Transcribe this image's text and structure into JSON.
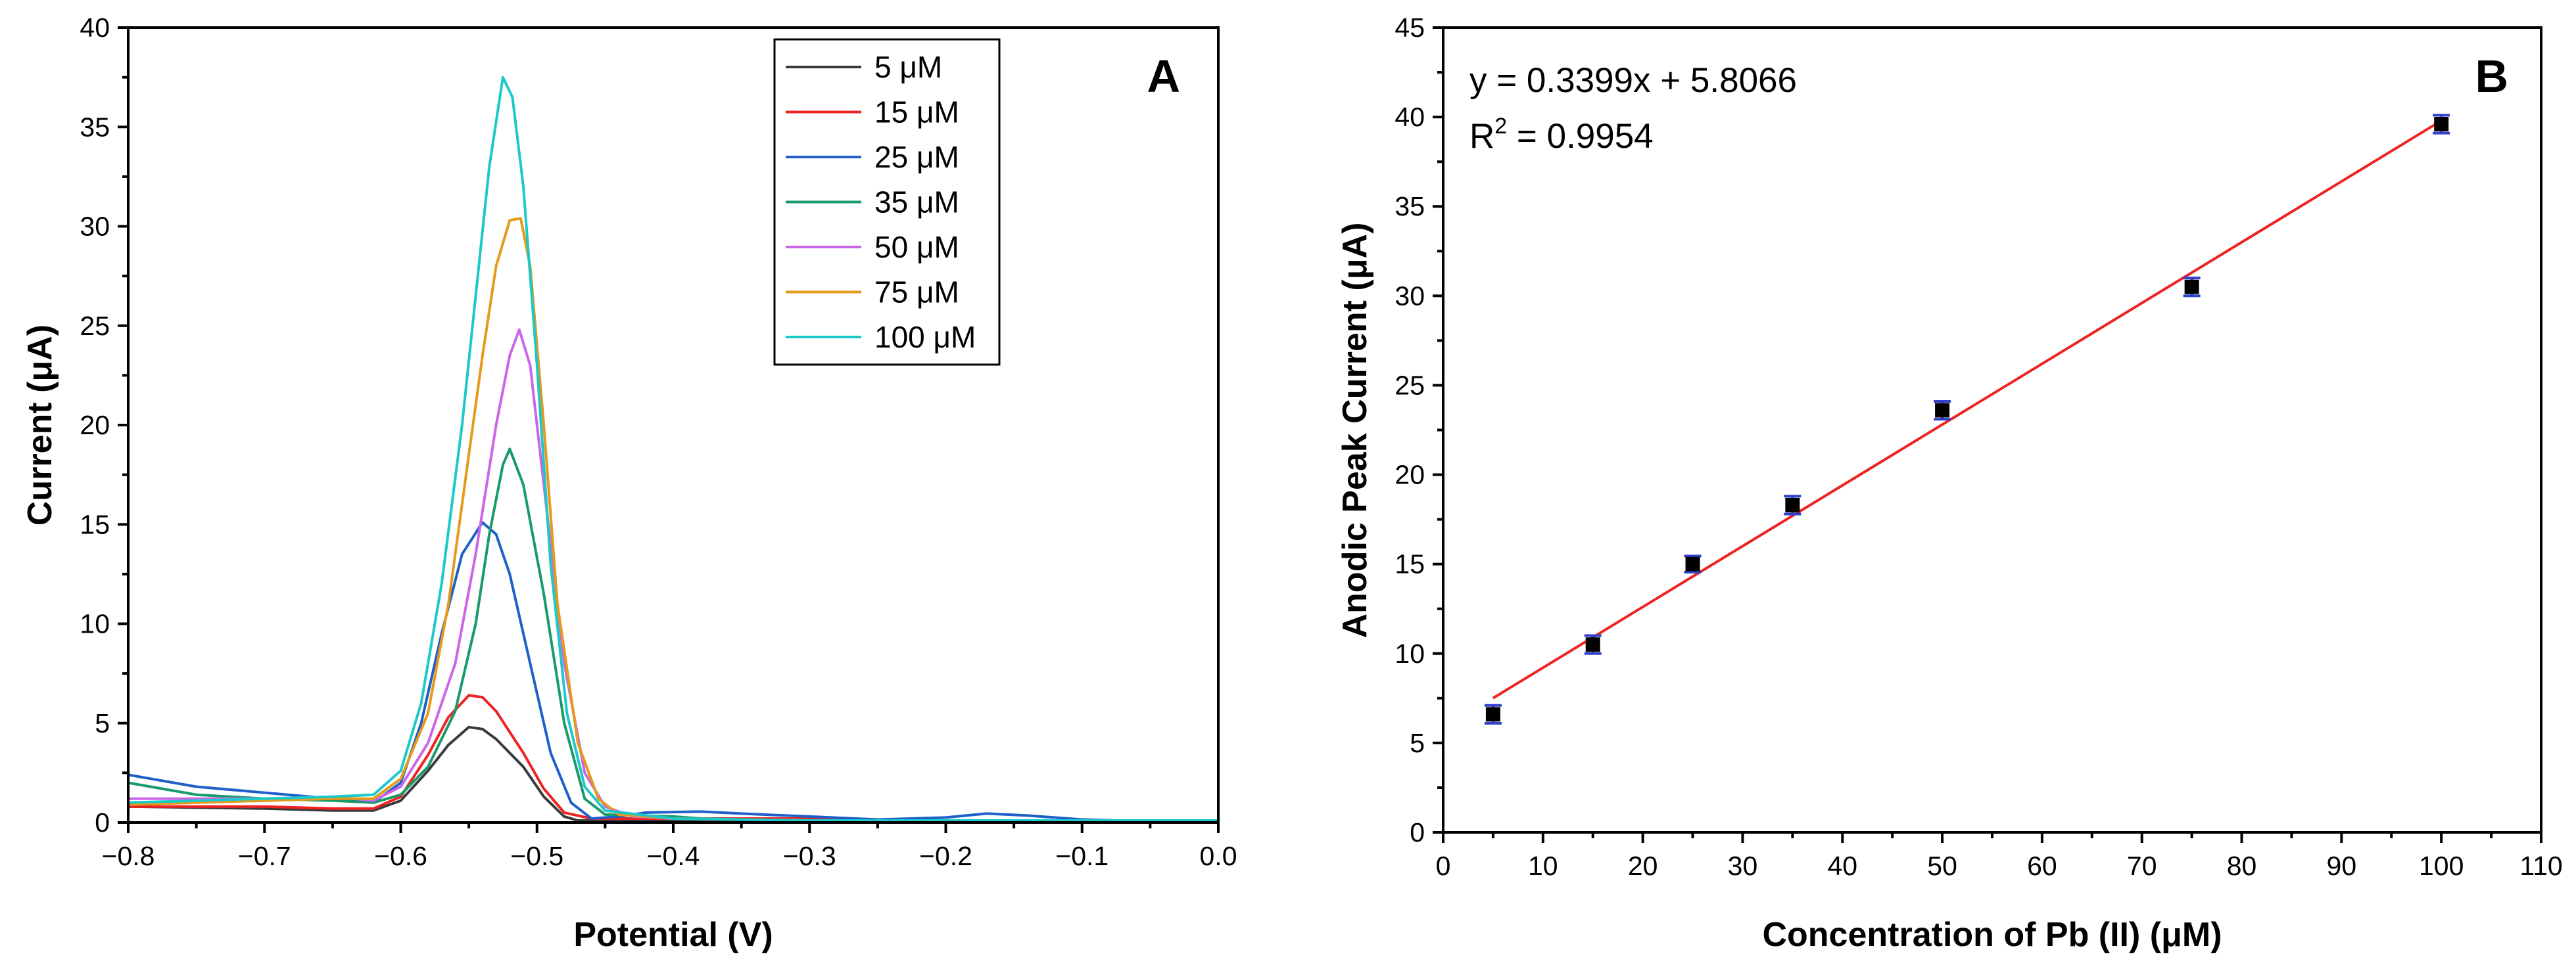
{
  "chart_data": [
    {
      "panel": "A",
      "type": "line",
      "xlabel": "Potential (V)",
      "ylabel": "Current (μA)",
      "xlim": [
        -0.8,
        0.0
      ],
      "ylim": [
        0,
        40
      ],
      "xticks": [
        -0.8,
        -0.7,
        -0.6,
        -0.5,
        -0.4,
        -0.3,
        -0.2,
        -0.1,
        0.0
      ],
      "xtick_labels": [
        "−0.8",
        "−0.7",
        "−0.6",
        "−0.5",
        "−0.4",
        "−0.3",
        "−0.2",
        "−0.1",
        "0.0"
      ],
      "yticks": [
        0,
        5,
        10,
        15,
        20,
        25,
        30,
        35,
        40
      ],
      "ytick_labels": [
        "0",
        "5",
        "10",
        "15",
        "20",
        "25",
        "30",
        "35",
        "40"
      ],
      "legend_position": "top-right",
      "series": [
        {
          "name": "5 μM",
          "color": "#3a3a3a",
          "points": [
            [
              -0.8,
              0.8
            ],
            [
              -0.7,
              0.7
            ],
            [
              -0.65,
              0.6
            ],
            [
              -0.62,
              0.6
            ],
            [
              -0.6,
              1.1
            ],
            [
              -0.58,
              2.6
            ],
            [
              -0.565,
              3.9
            ],
            [
              -0.55,
              4.8
            ],
            [
              -0.54,
              4.7
            ],
            [
              -0.53,
              4.2
            ],
            [
              -0.51,
              2.8
            ],
            [
              -0.495,
              1.3
            ],
            [
              -0.48,
              0.3
            ],
            [
              -0.47,
              0.1
            ],
            [
              -0.45,
              0.1
            ],
            [
              -0.4,
              0.1
            ],
            [
              -0.3,
              0.1
            ],
            [
              -0.2,
              0.1
            ],
            [
              -0.1,
              0.1
            ],
            [
              0.0,
              0.1
            ]
          ]
        },
        {
          "name": "15 μM",
          "color": "#ee2222",
          "points": [
            [
              -0.8,
              0.8
            ],
            [
              -0.7,
              0.8
            ],
            [
              -0.65,
              0.7
            ],
            [
              -0.62,
              0.7
            ],
            [
              -0.6,
              1.3
            ],
            [
              -0.58,
              3.4
            ],
            [
              -0.565,
              5.3
            ],
            [
              -0.55,
              6.4
            ],
            [
              -0.54,
              6.3
            ],
            [
              -0.53,
              5.6
            ],
            [
              -0.51,
              3.5
            ],
            [
              -0.495,
              1.7
            ],
            [
              -0.48,
              0.5
            ],
            [
              -0.46,
              0.2
            ],
            [
              -0.4,
              0.2
            ],
            [
              -0.3,
              0.2
            ],
            [
              -0.2,
              0.1
            ],
            [
              -0.1,
              0.1
            ],
            [
              0.0,
              0.1
            ]
          ]
        },
        {
          "name": "25 μM",
          "color": "#1f5fc9",
          "points": [
            [
              -0.8,
              2.4
            ],
            [
              -0.75,
              1.8
            ],
            [
              -0.7,
              1.5
            ],
            [
              -0.65,
              1.2
            ],
            [
              -0.62,
              1.0
            ],
            [
              -0.6,
              2.0
            ],
            [
              -0.585,
              5.0
            ],
            [
              -0.57,
              9.5
            ],
            [
              -0.555,
              13.5
            ],
            [
              -0.54,
              15.1
            ],
            [
              -0.53,
              14.5
            ],
            [
              -0.52,
              12.5
            ],
            [
              -0.505,
              8.0
            ],
            [
              -0.49,
              3.5
            ],
            [
              -0.475,
              1.0
            ],
            [
              -0.46,
              0.2
            ],
            [
              -0.44,
              0.3
            ],
            [
              -0.42,
              0.5
            ],
            [
              -0.38,
              0.55
            ],
            [
              -0.35,
              0.45
            ],
            [
              -0.3,
              0.3
            ],
            [
              -0.25,
              0.15
            ],
            [
              -0.2,
              0.25
            ],
            [
              -0.17,
              0.45
            ],
            [
              -0.14,
              0.35
            ],
            [
              -0.1,
              0.15
            ],
            [
              -0.05,
              0.05
            ],
            [
              0.0,
              0.1
            ]
          ]
        },
        {
          "name": "35 μM",
          "color": "#189a6a",
          "points": [
            [
              -0.8,
              2.0
            ],
            [
              -0.75,
              1.4
            ],
            [
              -0.7,
              1.2
            ],
            [
              -0.65,
              1.1
            ],
            [
              -0.62,
              1.0
            ],
            [
              -0.6,
              1.4
            ],
            [
              -0.58,
              2.8
            ],
            [
              -0.56,
              5.6
            ],
            [
              -0.545,
              10.0
            ],
            [
              -0.535,
              14.5
            ],
            [
              -0.525,
              18.0
            ],
            [
              -0.52,
              18.8
            ],
            [
              -0.51,
              17.0
            ],
            [
              -0.495,
              11.5
            ],
            [
              -0.48,
              5.0
            ],
            [
              -0.465,
              1.2
            ],
            [
              -0.45,
              0.4
            ],
            [
              -0.4,
              0.3
            ],
            [
              -0.38,
              0.2
            ],
            [
              -0.3,
              0.1
            ],
            [
              -0.2,
              0.1
            ],
            [
              -0.1,
              0.1
            ],
            [
              0.0,
              0.1
            ]
          ]
        },
        {
          "name": "50 μM",
          "color": "#cc66e8",
          "points": [
            [
              -0.8,
              1.2
            ],
            [
              -0.7,
              1.2
            ],
            [
              -0.65,
              1.3
            ],
            [
              -0.62,
              1.1
            ],
            [
              -0.6,
              1.8
            ],
            [
              -0.58,
              4.0
            ],
            [
              -0.56,
              8.0
            ],
            [
              -0.545,
              13.5
            ],
            [
              -0.53,
              20.0
            ],
            [
              -0.52,
              23.5
            ],
            [
              -0.513,
              24.8
            ],
            [
              -0.505,
              23.0
            ],
            [
              -0.495,
              17.0
            ],
            [
              -0.48,
              8.0
            ],
            [
              -0.465,
              2.5
            ],
            [
              -0.45,
              0.8
            ],
            [
              -0.43,
              0.3
            ],
            [
              -0.4,
              0.2
            ],
            [
              -0.3,
              0.1
            ],
            [
              -0.2,
              0.1
            ],
            [
              -0.1,
              0.1
            ],
            [
              0.0,
              0.1
            ]
          ]
        },
        {
          "name": "75 μM",
          "color": "#e49a1c",
          "points": [
            [
              -0.8,
              0.9
            ],
            [
              -0.7,
              1.1
            ],
            [
              -0.65,
              1.2
            ],
            [
              -0.62,
              1.2
            ],
            [
              -0.6,
              2.2
            ],
            [
              -0.58,
              5.5
            ],
            [
              -0.565,
              11.0
            ],
            [
              -0.55,
              18.5
            ],
            [
              -0.54,
              23.5
            ],
            [
              -0.53,
              28.0
            ],
            [
              -0.52,
              30.3
            ],
            [
              -0.512,
              30.4
            ],
            [
              -0.505,
              28.0
            ],
            [
              -0.495,
              20.0
            ],
            [
              -0.485,
              11.0
            ],
            [
              -0.47,
              4.0
            ],
            [
              -0.455,
              1.2
            ],
            [
              -0.44,
              0.4
            ],
            [
              -0.4,
              0.2
            ],
            [
              -0.3,
              0.1
            ],
            [
              -0.2,
              0.1
            ],
            [
              -0.1,
              0.1
            ],
            [
              0.0,
              0.1
            ]
          ]
        },
        {
          "name": "100 μM",
          "color": "#1cc9c9",
          "points": [
            [
              -0.8,
              1.0
            ],
            [
              -0.7,
              1.2
            ],
            [
              -0.65,
              1.3
            ],
            [
              -0.62,
              1.4
            ],
            [
              -0.6,
              2.6
            ],
            [
              -0.585,
              6.0
            ],
            [
              -0.57,
              12.0
            ],
            [
              -0.555,
              20.0
            ],
            [
              -0.545,
              26.5
            ],
            [
              -0.535,
              33.0
            ],
            [
              -0.525,
              37.5
            ],
            [
              -0.518,
              36.5
            ],
            [
              -0.51,
              32.0
            ],
            [
              -0.5,
              23.0
            ],
            [
              -0.49,
              13.0
            ],
            [
              -0.478,
              5.5
            ],
            [
              -0.465,
              1.8
            ],
            [
              -0.45,
              0.6
            ],
            [
              -0.4,
              0.2
            ],
            [
              -0.3,
              0.1
            ],
            [
              -0.2,
              0.1
            ],
            [
              -0.1,
              0.1
            ],
            [
              0.0,
              0.1
            ]
          ]
        }
      ]
    },
    {
      "panel": "B",
      "type": "scatter",
      "xlabel": "Concentration of Pb (II) (μM)",
      "ylabel": "Anodic Peak Current (μA)",
      "xlim": [
        0,
        110
      ],
      "ylim": [
        0,
        45
      ],
      "xticks": [
        0,
        10,
        20,
        30,
        40,
        50,
        60,
        70,
        80,
        90,
        100,
        110
      ],
      "xtick_labels": [
        "0",
        "10",
        "20",
        "30",
        "40",
        "50",
        "60",
        "70",
        "80",
        "90",
        "100",
        "110"
      ],
      "yticks": [
        0,
        5,
        10,
        15,
        20,
        25,
        30,
        35,
        40,
        45
      ],
      "ytick_labels": [
        "0",
        "5",
        "10",
        "15",
        "20",
        "25",
        "30",
        "35",
        "40",
        "45"
      ],
      "x": [
        5,
        15,
        25,
        35,
        50,
        75,
        100
      ],
      "y": [
        6.6,
        10.5,
        15.0,
        18.3,
        23.6,
        30.5,
        39.6
      ],
      "error": [
        0.5,
        0.5,
        0.45,
        0.5,
        0.5,
        0.5,
        0.5
      ],
      "marker_color": "#000000",
      "errorbar_color": "#3040cc",
      "fit": {
        "slope": 0.3399,
        "intercept": 5.8066,
        "x_range": [
          5,
          100
        ],
        "color": "#ee2222"
      },
      "equation": "y = 0.3399x + 5.8066",
      "r2_prefix": "R",
      "r2_sup": "2",
      "r2_value": " = 0.9954"
    }
  ]
}
